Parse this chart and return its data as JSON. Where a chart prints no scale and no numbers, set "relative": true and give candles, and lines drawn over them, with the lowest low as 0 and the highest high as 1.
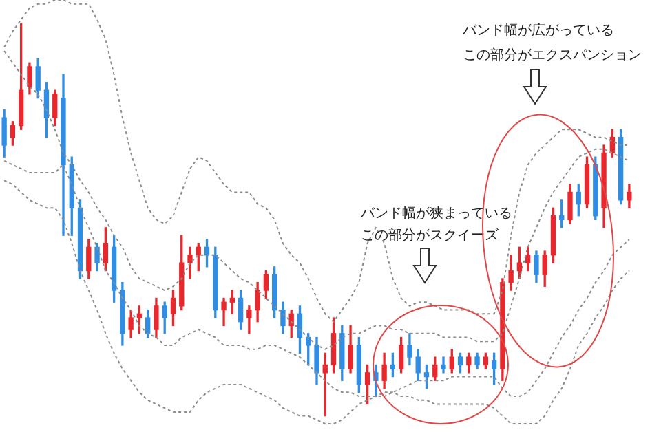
{
  "chart_data": {
    "type": "candlestick",
    "relative": true,
    "legend": false,
    "marker": "none",
    "categories": [
      null,
      null,
      null,
      null,
      null,
      null,
      null,
      null,
      null,
      null,
      null,
      null,
      null,
      null,
      null,
      null,
      null,
      null,
      null,
      null,
      null,
      null,
      null,
      null,
      null,
      null,
      null,
      null,
      null,
      null,
      null,
      null,
      null,
      null,
      null,
      null,
      null,
      null,
      null,
      null,
      null,
      null,
      null,
      null,
      null,
      null,
      null,
      null,
      null,
      null,
      null,
      null,
      null,
      null,
      null,
      null,
      null,
      null,
      null,
      null,
      null,
      null,
      null,
      null,
      null,
      null,
      null,
      null,
      null,
      null,
      null,
      null,
      null,
      null,
      null
    ],
    "ohlc": [
      [
        0.76,
        0.78,
        0.66,
        0.69
      ],
      [
        0.71,
        0.75,
        0.69,
        0.74
      ],
      [
        0.74,
        1,
        0.73,
        0.83
      ],
      [
        0.84,
        0.9,
        0.82,
        0.89
      ],
      [
        0.89,
        0.91,
        0.81,
        0.83
      ],
      [
        0.83,
        0.85,
        0.71,
        0.76
      ],
      [
        0.76,
        0.83,
        0.74,
        0.82
      ],
      [
        0.81,
        0.87,
        0.46,
        0.64
      ],
      [
        0.64,
        0.66,
        0.46,
        0.53
      ],
      [
        0.53,
        0.55,
        0.35,
        0.37
      ],
      [
        0.37,
        0.45,
        0.35,
        0.43
      ],
      [
        0.43,
        0.44,
        0.37,
        0.39
      ],
      [
        0.39,
        0.48,
        0.37,
        0.44
      ],
      [
        0.43,
        0.46,
        0.29,
        0.32
      ],
      [
        0.32,
        0.34,
        0.18,
        0.21
      ],
      [
        0.22,
        0.27,
        0.2,
        0.25
      ],
      [
        0.25,
        0.28,
        0.21,
        0.26
      ],
      [
        0.25,
        0.27,
        0.2,
        0.21
      ],
      [
        0.22,
        0.3,
        0.2,
        0.28
      ],
      [
        0.28,
        0.29,
        0.21,
        0.25
      ],
      [
        0.26,
        0.32,
        0.23,
        0.3
      ],
      [
        0.28,
        0.46,
        0.27,
        0.39
      ],
      [
        0.39,
        0.43,
        0.35,
        0.41
      ],
      [
        0.41,
        0.44,
        0.37,
        0.43
      ],
      [
        0.43,
        0.45,
        0.38,
        0.41
      ],
      [
        0.41,
        0.43,
        0.25,
        0.27
      ],
      [
        0.27,
        0.3,
        0.23,
        0.29
      ],
      [
        0.29,
        0.32,
        0.26,
        0.3
      ],
      [
        0.3,
        0.32,
        0.22,
        0.24
      ],
      [
        0.25,
        0.28,
        0.21,
        0.27
      ],
      [
        0.27,
        0.34,
        0.24,
        0.32
      ],
      [
        0.32,
        0.37,
        0.3,
        0.36
      ],
      [
        0.36,
        0.38,
        0.25,
        0.27
      ],
      [
        0.27,
        0.29,
        0.21,
        0.23
      ],
      [
        0.23,
        0.27,
        0.2,
        0.26
      ],
      [
        0.26,
        0.28,
        0.16,
        0.2
      ],
      [
        0.2,
        0.21,
        0.13,
        0.18
      ],
      [
        0.18,
        0.2,
        0.08,
        0.11
      ],
      [
        0.11,
        0.16,
        0,
        0.13
      ],
      [
        0.13,
        0.25,
        0.11,
        0.21
      ],
      [
        0.21,
        0.23,
        0.09,
        0.12
      ],
      [
        0.12,
        0.23,
        0.11,
        0.18
      ],
      [
        0.18,
        0.2,
        0.06,
        0.08
      ],
      [
        0.08,
        0.13,
        0.03,
        0.11
      ],
      [
        0.11,
        0.13,
        0.05,
        0.09
      ],
      [
        0.09,
        0.16,
        0.07,
        0.13
      ],
      [
        0.13,
        0.16,
        0.1,
        0.12
      ],
      [
        0.12,
        0.2,
        0.11,
        0.18
      ],
      [
        0.18,
        0.21,
        0.13,
        0.15
      ],
      [
        0.15,
        0.17,
        0.09,
        0.11
      ],
      [
        0.11,
        0.13,
        0.07,
        0.1
      ],
      [
        0.1,
        0.15,
        0.09,
        0.13
      ],
      [
        0.13,
        0.15,
        0.11,
        0.12
      ],
      [
        0.12,
        0.17,
        0.11,
        0.15
      ],
      [
        0.15,
        0.16,
        0.11,
        0.13
      ],
      [
        0.13,
        0.16,
        0.11,
        0.15
      ],
      [
        0.15,
        0.16,
        0.12,
        0.13
      ],
      [
        0.13,
        0.16,
        0.12,
        0.15
      ],
      [
        0.14,
        0.16,
        0.08,
        0.12
      ],
      [
        0.12,
        0.35,
        0.09,
        0.34
      ],
      [
        0.34,
        0.41,
        0.32,
        0.37
      ],
      [
        0.37,
        0.43,
        0.35,
        0.39
      ],
      [
        0.39,
        0.43,
        0.37,
        0.41
      ],
      [
        0.41,
        0.42,
        0.34,
        0.36
      ],
      [
        0.36,
        0.42,
        0.33,
        0.41
      ],
      [
        0.41,
        0.53,
        0.39,
        0.51
      ],
      [
        0.51,
        0.55,
        0.48,
        0.5
      ],
      [
        0.5,
        0.59,
        0.49,
        0.57
      ],
      [
        0.57,
        0.59,
        0.51,
        0.54
      ],
      [
        0.54,
        0.66,
        0.53,
        0.64
      ],
      [
        0.64,
        0.66,
        0.5,
        0.51
      ],
      [
        0.53,
        0.69,
        0.48,
        0.67
      ],
      [
        0.67,
        0.73,
        0.66,
        0.71
      ],
      [
        0.71,
        0.73,
        0.54,
        0.55
      ],
      [
        0.55,
        0.59,
        0.53,
        0.57
      ]
    ],
    "colors": [
      "#2f8de4",
      "#e8282d",
      "#e8282d",
      "#e8282d",
      "#2f8de4",
      "#2f8de4",
      "#e8282d",
      "#2f8de4",
      "#2f8de4",
      "#2f8de4",
      "#e8282d",
      "#2f8de4",
      "#e8282d",
      "#2f8de4",
      "#2f8de4",
      "#e8282d",
      "#e8282d",
      "#2f8de4",
      "#e8282d",
      "#2f8de4",
      "#e8282d",
      "#e8282d",
      "#e8282d",
      "#e8282d",
      "#2f8de4",
      "#2f8de4",
      "#e8282d",
      "#e8282d",
      "#2f8de4",
      "#e8282d",
      "#e8282d",
      "#e8282d",
      "#2f8de4",
      "#2f8de4",
      "#e8282d",
      "#2f8de4",
      "#2f8de4",
      "#2f8de4",
      "#e8282d",
      "#e8282d",
      "#2f8de4",
      "#e8282d",
      "#2f8de4",
      "#e8282d",
      "#2f8de4",
      "#e8282d",
      "#2f8de4",
      "#e8282d",
      "#2f8de4",
      "#2f8de4",
      "#2f8de4",
      "#e8282d",
      "#2f8de4",
      "#e8282d",
      "#2f8de4",
      "#e8282d",
      "#2f8de4",
      "#e8282d",
      "#2f8de4",
      "#e8282d",
      "#e8282d",
      "#e8282d",
      "#e8282d",
      "#2f8de4",
      "#e8282d",
      "#e8282d",
      "#2f8de4",
      "#e8282d",
      "#2f8de4",
      "#e8282d",
      "#2f8de4",
      "#e8282d",
      "#e8282d",
      "#2f8de4",
      "#e8282d"
    ],
    "series": [
      {
        "type": "line",
        "color": "#8c8c8c",
        "line_style": "dotted",
        "values": [
          0.94,
          0.98,
          1.01,
          1.04,
          1.05,
          1.05,
          1.06,
          1.06,
          1.05,
          1.05,
          1.05,
          1.01,
          0.96,
          0.87,
          0.76,
          0.67,
          0.6,
          0.53,
          0.5,
          0.49,
          0.51,
          0.57,
          0.63,
          0.66,
          0.65,
          0.62,
          0.59,
          0.57,
          0.57,
          0.57,
          0.54,
          0.53,
          0.5,
          0.44,
          0.41,
          0.39,
          0.35,
          0.3,
          0.26,
          0.24,
          0.27,
          0.3,
          0.34,
          0.44,
          0.48,
          0.44,
          0.35,
          0.3,
          0.28,
          0.29,
          0.29,
          0.28,
          0.27,
          0.27,
          0.27,
          0.27,
          0.26,
          0.26,
          0.26,
          0.32,
          0.46,
          0.57,
          0.64,
          0.67,
          0.69,
          0.71,
          0.73,
          0.73,
          0.73,
          0.72,
          0.71,
          0.71,
          0.7,
          0.69,
          0.69
        ]
      },
      {
        "type": "line",
        "color": "#8c8c8c",
        "line_style": "dotted",
        "values": [
          0.93,
          0.9,
          0.87,
          0.84,
          0.82,
          0.78,
          0.73,
          0.67,
          0.64,
          0.6,
          0.57,
          0.53,
          0.5,
          0.46,
          0.43,
          0.38,
          0.35,
          0.34,
          0.33,
          0.32,
          0.33,
          0.35,
          0.39,
          0.41,
          0.41,
          0.41,
          0.39,
          0.37,
          0.35,
          0.34,
          0.32,
          0.3,
          0.28,
          0.26,
          0.24,
          0.22,
          0.2,
          0.18,
          0.17,
          0.18,
          0.2,
          0.21,
          0.21,
          0.22,
          0.23,
          0.23,
          0.22,
          0.22,
          0.21,
          0.21,
          0.21,
          0.21,
          0.2,
          0.2,
          0.2,
          0.2,
          0.19,
          0.19,
          0.19,
          0.21,
          0.28,
          0.35,
          0.43,
          0.48,
          0.53,
          0.57,
          0.6,
          0.63,
          0.66,
          0.67,
          0.68,
          0.68,
          0.67,
          0.66,
          0.65
        ]
      },
      {
        "type": "line",
        "color": "#8c8c8c",
        "line_style": "dotted",
        "values": [
          0.65,
          0.64,
          0.63,
          0.62,
          0.62,
          0.62,
          0.62,
          0.64,
          0.59,
          0.53,
          0.48,
          0.43,
          0.37,
          0.34,
          0.3,
          0.27,
          0.23,
          0.21,
          0.2,
          0.18,
          0.18,
          0.2,
          0.21,
          0.22,
          0.21,
          0.2,
          0.18,
          0.18,
          0.18,
          0.17,
          0.17,
          0.18,
          0.18,
          0.17,
          0.16,
          0.15,
          0.13,
          0.11,
          0.09,
          0.07,
          0.06,
          0.06,
          0.05,
          0.05,
          0.05,
          0.05,
          0.06,
          0.07,
          0.08,
          0.09,
          0.09,
          0.09,
          0.09,
          0.1,
          0.1,
          0.1,
          0.1,
          0.1,
          0.1,
          0.07,
          0.05,
          0.05,
          0.06,
          0.09,
          0.12,
          0.16,
          0.2,
          0.23,
          0.27,
          0.3,
          0.34,
          0.37,
          0.41,
          0.43,
          0.45
        ]
      },
      {
        "type": "line",
        "color": "#8c8c8c",
        "line_style": "dotted",
        "values": [
          0.6,
          0.59,
          0.57,
          0.55,
          0.54,
          0.53,
          0.53,
          0.5,
          0.44,
          0.37,
          0.32,
          0.27,
          0.21,
          0.16,
          0.12,
          0.09,
          0.06,
          0.04,
          0.03,
          0.02,
          0.01,
          0.01,
          0.01,
          0.04,
          0.06,
          0.07,
          0.08,
          0.08,
          0.08,
          0.07,
          0.06,
          0.05,
          0.04,
          0.02,
          0.01,
          0,
          0,
          -0.01,
          -0.02,
          -0.02,
          -0.01,
          0.01,
          0.03,
          0.04,
          0.05,
          0.06,
          0.06,
          0.05,
          0.05,
          0.04,
          0.04,
          0.03,
          0.03,
          0.03,
          0.03,
          0.03,
          0.03,
          0.03,
          0.02,
          0,
          -0.02,
          -0.02,
          -0.02,
          -0.02,
          0,
          0.04,
          0.07,
          0.12,
          0.18,
          0.21,
          0.25,
          0.28,
          0.32,
          0.35,
          0.37
        ]
      }
    ],
    "annotations": [
      "バンド幅が広がっている",
      "この部分がエクスパンション",
      "バンド幅が狭まっている",
      "この部分がスクイーズ"
    ]
  }
}
